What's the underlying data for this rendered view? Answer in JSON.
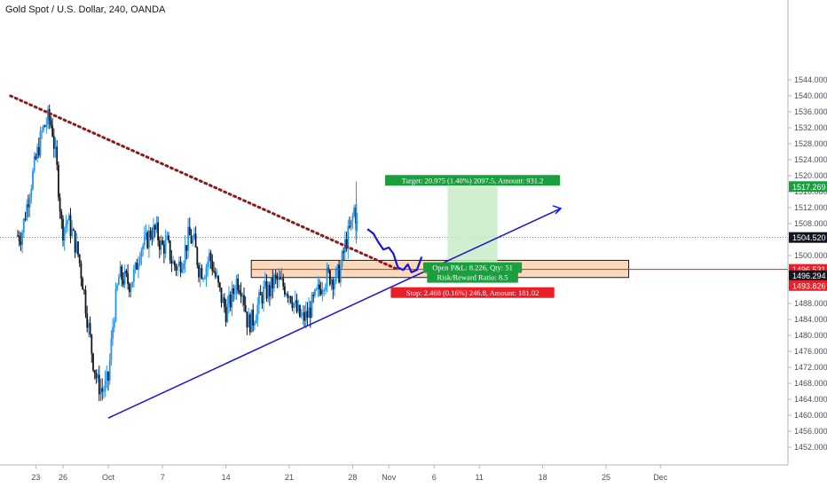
{
  "header": {
    "symbol_title": "Gold Spot / U.S. Dollar, 240, OANDA"
  },
  "colors": {
    "bull": "#2196f3",
    "bear": "#131722",
    "support_line": "#1414d6",
    "resistance_line": "#8b1a1a",
    "zone_fill": "#fbd9bd",
    "zone_border": "#1a1a1a",
    "target_fill": "#c8ecc6",
    "target_badge": "#1b9e3e",
    "stop_badge": "#e8202a",
    "stop_line": "#e8202a",
    "projection": "#1414d6",
    "current_price_badge": "#131722",
    "mid_price_badge": "#131722"
  },
  "chart_data": {
    "type": "candlestick",
    "title": "Gold Spot / U.S. Dollar, 240, OANDA",
    "ylim": [
      1448,
      1546
    ],
    "y_ticks": [
      1452,
      1456,
      1460,
      1464,
      1468,
      1472,
      1476,
      1480,
      1484,
      1488,
      1492,
      1496,
      1500,
      1504,
      1508,
      1512,
      1516,
      1520,
      1524,
      1528,
      1532,
      1536,
      1540,
      1544
    ],
    "y_tick_labels": [
      "1452.000",
      "1456.000",
      "1460.000",
      "1464.000",
      "1468.000",
      "1472.000",
      "1476.000",
      "1480.000",
      "1484.000",
      "1488.000",
      "1492.000",
      "1496.000",
      "1500.000",
      "1504.000",
      "1508.000",
      "1512.000",
      "1516.000",
      "1520.000",
      "1524.000",
      "1528.000",
      "1532.000",
      "1536.000",
      "1540.000",
      "1544.000"
    ],
    "x_ticks": [
      {
        "label": "23",
        "day": -8
      },
      {
        "label": "26",
        "day": -5
      },
      {
        "label": "Oct",
        "day": 0
      },
      {
        "label": "7",
        "day": 6
      },
      {
        "label": "14",
        "day": 13
      },
      {
        "label": "21",
        "day": 20
      },
      {
        "label": "28",
        "day": 27
      },
      {
        "label": "Nov",
        "day": 31
      },
      {
        "label": "6",
        "day": 36
      },
      {
        "label": "11",
        "day": 41
      },
      {
        "label": "18",
        "day": 48
      },
      {
        "label": "25",
        "day": 55
      },
      {
        "label": "Dec",
        "day": 61
      }
    ],
    "candle_anchors": [
      [
        -9.6,
        1505.0
      ],
      [
        -8.8,
        1515.0
      ],
      [
        -8.0,
        1524.0
      ],
      [
        -7.3,
        1531.0
      ],
      [
        -6.6,
        1534.5
      ],
      [
        -6.2,
        1532.0
      ],
      [
        -5.6,
        1520.0
      ],
      [
        -5.1,
        1506.0
      ],
      [
        -4.5,
        1509.0
      ],
      [
        -3.9,
        1505.0
      ],
      [
        -3.3,
        1500.0
      ],
      [
        -2.8,
        1493.0
      ],
      [
        -2.3,
        1484.0
      ],
      [
        -1.7,
        1474.0
      ],
      [
        -1.2,
        1468.0
      ],
      [
        -0.6,
        1466.0
      ],
      [
        0.0,
        1469.0
      ],
      [
        0.6,
        1485.0
      ],
      [
        1.2,
        1495.0
      ],
      [
        1.8,
        1494.0
      ],
      [
        2.4,
        1493.0
      ],
      [
        3.0,
        1496.0
      ],
      [
        3.5,
        1502.0
      ],
      [
        4.1,
        1503.0
      ],
      [
        4.7,
        1506.0
      ],
      [
        5.3,
        1506.0
      ],
      [
        5.9,
        1502.0
      ],
      [
        6.5,
        1503.0
      ],
      [
        7.1,
        1498.0
      ],
      [
        7.7,
        1497.0
      ],
      [
        8.3,
        1500.0
      ],
      [
        8.9,
        1505.0
      ],
      [
        9.5,
        1503.0
      ],
      [
        10.0,
        1497.0
      ],
      [
        10.6,
        1496.0
      ],
      [
        11.2,
        1500.0
      ],
      [
        11.8,
        1495.0
      ],
      [
        12.4,
        1490.0
      ],
      [
        13.0,
        1486.0
      ],
      [
        13.6,
        1489.0
      ],
      [
        14.2,
        1494.0
      ],
      [
        14.8,
        1492.0
      ],
      [
        15.4,
        1483.0
      ],
      [
        16.0,
        1484.0
      ],
      [
        16.6,
        1488.0
      ],
      [
        17.2,
        1491.0
      ],
      [
        17.8,
        1491.0
      ],
      [
        18.4,
        1494.0
      ],
      [
        19.0,
        1493.0
      ],
      [
        19.6,
        1492.0
      ],
      [
        20.2,
        1490.0
      ],
      [
        20.8,
        1486.0
      ],
      [
        21.4,
        1484.0
      ],
      [
        22.0,
        1485.0
      ],
      [
        22.6,
        1488.0
      ],
      [
        23.2,
        1491.0
      ],
      [
        23.8,
        1494.0
      ],
      [
        24.4,
        1495.0
      ],
      [
        25.0,
        1494.0
      ],
      [
        25.6,
        1496.0
      ],
      [
        26.2,
        1503.0
      ],
      [
        26.8,
        1507.0
      ],
      [
        27.2,
        1512.0
      ],
      [
        27.6,
        1506.0
      ]
    ],
    "last_price": 1504.52,
    "last_price_label": "1504.520",
    "target_price": 1517.269,
    "target_price_label": "1517.269",
    "entry_price": 1496.294,
    "entry_price_label": "1496.294",
    "stop_line_price": 1496.531,
    "stop_line_price_label": "1496.531",
    "stop_price": 1493.826,
    "stop_price_label": "1493.826",
    "zone": {
      "day_from": 15.8,
      "day_to": 57.5,
      "price_top": 1498.8,
      "price_bottom": 1494.5
    },
    "position": {
      "day_from": 37.5,
      "day_to": 43.0,
      "entry": 1496.294,
      "target": 1517.269,
      "stop": 1493.826
    },
    "support_line": {
      "from": [
        0.0,
        1459.3
      ],
      "to": [
        50.0,
        1511.8
      ]
    },
    "resistance_line": {
      "from": [
        -10.8,
        1540.0
      ],
      "to": [
        32.0,
        1496.5
      ]
    },
    "projection_path": [
      [
        28.7,
        1506.5
      ],
      [
        29.3,
        1505.5
      ],
      [
        29.8,
        1503.5
      ],
      [
        30.4,
        1501.5
      ],
      [
        31.0,
        1502.0
      ],
      [
        31.5,
        1500.5
      ],
      [
        32.0,
        1497.0
      ],
      [
        32.6,
        1496.4
      ],
      [
        33.1,
        1497.8
      ],
      [
        33.5,
        1495.8
      ],
      [
        34.1,
        1496.4
      ],
      [
        34.6,
        1499.5
      ]
    ],
    "target_label": "Target: 20.975 (1.40%) 2097.5, Amount: 931.2",
    "stop_label": "Stop: 2.468 (0.16%) 246.8, Amount: 181.02",
    "open_pl_label": "Open P&L: 8.226, Qty: 51",
    "rr_label": "Risk/Reward Ratio: 8.5"
  }
}
